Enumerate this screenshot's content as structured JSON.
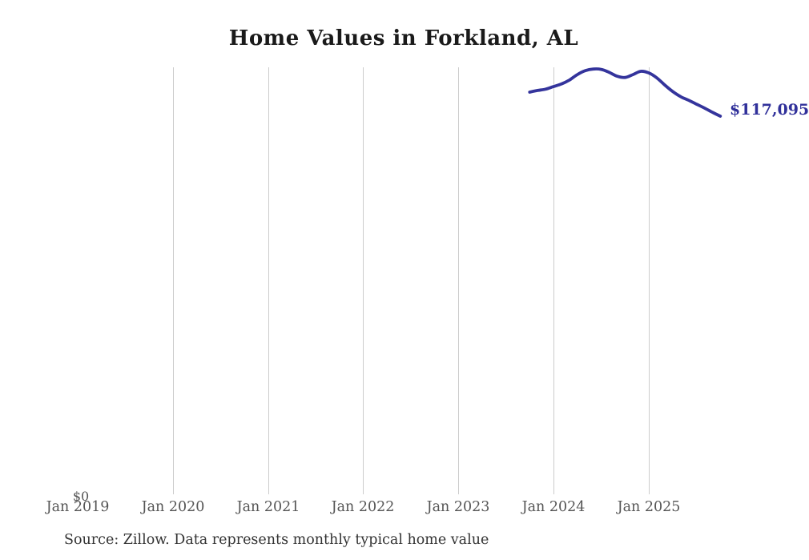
{
  "title": "Home Values in Forkland, AL",
  "source_note": "Source: Zillow. Data represents monthly typical home value",
  "latest_value_label": "$117,095",
  "y_axis": {
    "zero_label": "$0"
  },
  "x_axis": {
    "tick_labels": [
      "Jan 2019",
      "Jan 2020",
      "Jan 2021",
      "Jan 2022",
      "Jan 2023",
      "Jan 2024",
      "Jan 2025"
    ]
  },
  "colors": {
    "line": "#34349c",
    "latest_value_label": "#30309a",
    "grid": "#cccccc",
    "tick": "#555555",
    "title": "#1a1a1a",
    "source": "#333333"
  },
  "chart_data": {
    "type": "line",
    "title": "Home Values in Forkland, AL",
    "x": [
      "Oct 2023",
      "Nov 2023",
      "Dec 2023",
      "Jan 2024",
      "Feb 2024",
      "Mar 2024",
      "Apr 2024",
      "May 2024",
      "Jun 2024",
      "Jul 2024",
      "Aug 2024",
      "Sep 2024",
      "Oct 2024",
      "Nov 2024",
      "Dec 2024",
      "Jan 2025",
      "Feb 2025",
      "Mar 2025",
      "Apr 2025",
      "May 2025",
      "Jun 2025",
      "Jul 2025",
      "Aug 2025",
      "Sep 2025",
      "Oct 2025"
    ],
    "values": [
      124500,
      125000,
      125400,
      126200,
      127000,
      128200,
      129900,
      131100,
      131600,
      131500,
      130600,
      129400,
      129000,
      129900,
      130900,
      130400,
      128900,
      126700,
      124700,
      123100,
      122000,
      120800,
      119600,
      118300,
      117095
    ],
    "latest_value": 117095,
    "xlabel": "",
    "ylabel": "",
    "ylim_dollars": [
      0,
      135000
    ],
    "x_tick_labels": [
      "Jan 2019",
      "Jan 2020",
      "Jan 2021",
      "Jan 2022",
      "Jan 2023",
      "Jan 2024",
      "Jan 2025"
    ],
    "grid": "vertical-year-lines",
    "legend": "none"
  }
}
